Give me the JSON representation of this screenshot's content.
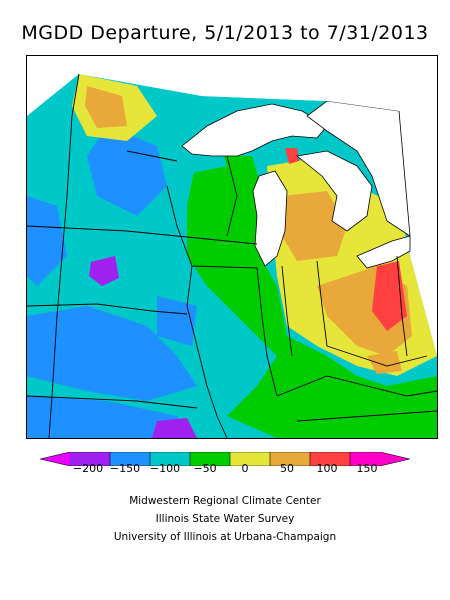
{
  "title": "MGDD Departure, 5/1/2013 to 7/31/2013",
  "legend": {
    "ticks": [
      "−200",
      "−150",
      "−100",
      "−50",
      "0",
      "50",
      "100",
      "150"
    ],
    "colors": [
      "#a020f0",
      "#1e90ff",
      "#00c8c8",
      "#00cc00",
      "#e6e63a",
      "#e8a83a",
      "#ff4040",
      "#ff00c8"
    ]
  },
  "credits": [
    "Midwestern Regional Climate Center",
    "Illinois State Water Survey",
    "University of Illinois at Urbana-Champaign"
  ]
}
